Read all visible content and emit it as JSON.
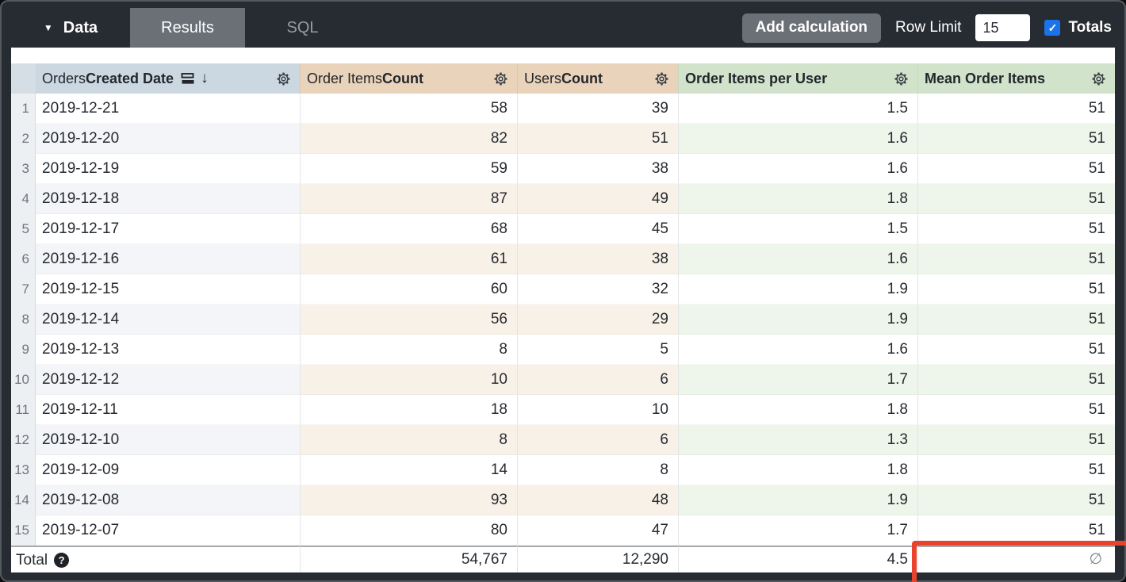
{
  "topbar": {
    "data_label": "Data",
    "tabs": [
      {
        "label": "Results",
        "active": true
      },
      {
        "label": "SQL",
        "active": false
      }
    ],
    "add_calculation_label": "Add calculation",
    "row_limit_label": "Row Limit",
    "row_limit_value": "15",
    "totals_label": "Totals",
    "totals_checked": true
  },
  "icons": {
    "caret-down": "▼",
    "sort-descending-arrow": "↓",
    "checkmark": "✓",
    "help": "?"
  },
  "table": {
    "columns": [
      {
        "view": "Orders",
        "field": "Created Date",
        "type": "dimension",
        "sorted": "descending"
      },
      {
        "view": "Order Items",
        "field": "Count",
        "type": "measure"
      },
      {
        "view": "Users",
        "field": "Count",
        "type": "measure"
      },
      {
        "view": "",
        "field": "Order Items per User",
        "type": "table_calculation"
      },
      {
        "view": "",
        "field": "Mean Order Items",
        "type": "table_calculation"
      }
    ],
    "rows": [
      {
        "num": "1",
        "date": "2019-12-21",
        "order_items_count": "58",
        "users_count": "39",
        "order_items_per_user": "1.5",
        "mean_order_items": "51"
      },
      {
        "num": "2",
        "date": "2019-12-20",
        "order_items_count": "82",
        "users_count": "51",
        "order_items_per_user": "1.6",
        "mean_order_items": "51"
      },
      {
        "num": "3",
        "date": "2019-12-19",
        "order_items_count": "59",
        "users_count": "38",
        "order_items_per_user": "1.6",
        "mean_order_items": "51"
      },
      {
        "num": "4",
        "date": "2019-12-18",
        "order_items_count": "87",
        "users_count": "49",
        "order_items_per_user": "1.8",
        "mean_order_items": "51"
      },
      {
        "num": "5",
        "date": "2019-12-17",
        "order_items_count": "68",
        "users_count": "45",
        "order_items_per_user": "1.5",
        "mean_order_items": "51"
      },
      {
        "num": "6",
        "date": "2019-12-16",
        "order_items_count": "61",
        "users_count": "38",
        "order_items_per_user": "1.6",
        "mean_order_items": "51"
      },
      {
        "num": "7",
        "date": "2019-12-15",
        "order_items_count": "60",
        "users_count": "32",
        "order_items_per_user": "1.9",
        "mean_order_items": "51"
      },
      {
        "num": "8",
        "date": "2019-12-14",
        "order_items_count": "56",
        "users_count": "29",
        "order_items_per_user": "1.9",
        "mean_order_items": "51"
      },
      {
        "num": "9",
        "date": "2019-12-13",
        "order_items_count": "8",
        "users_count": "5",
        "order_items_per_user": "1.6",
        "mean_order_items": "51"
      },
      {
        "num": "10",
        "date": "2019-12-12",
        "order_items_count": "10",
        "users_count": "6",
        "order_items_per_user": "1.7",
        "mean_order_items": "51"
      },
      {
        "num": "11",
        "date": "2019-12-11",
        "order_items_count": "18",
        "users_count": "10",
        "order_items_per_user": "1.8",
        "mean_order_items": "51"
      },
      {
        "num": "12",
        "date": "2019-12-10",
        "order_items_count": "8",
        "users_count": "6",
        "order_items_per_user": "1.3",
        "mean_order_items": "51"
      },
      {
        "num": "13",
        "date": "2019-12-09",
        "order_items_count": "14",
        "users_count": "8",
        "order_items_per_user": "1.8",
        "mean_order_items": "51"
      },
      {
        "num": "14",
        "date": "2019-12-08",
        "order_items_count": "93",
        "users_count": "48",
        "order_items_per_user": "1.9",
        "mean_order_items": "51"
      },
      {
        "num": "15",
        "date": "2019-12-07",
        "order_items_count": "80",
        "users_count": "47",
        "order_items_per_user": "1.7",
        "mean_order_items": "51"
      }
    ],
    "total": {
      "label": "Total",
      "order_items_count": "54,767",
      "users_count": "12,290",
      "order_items_per_user": "4.5",
      "mean_order_items": "∅"
    }
  },
  "colors": {
    "topbar_background": "#272c33",
    "active_tab_background": "#6b7077",
    "dimension_header": "#ccd8e1",
    "measure_header": "#e9d3ba",
    "calculation_header": "#d2e3cb",
    "checkbox_blue": "#1a73e8",
    "annotation_red": "#e8432d"
  },
  "annotation": {
    "shape": "red-highlight-box",
    "target": "total-mean-order-items-cell"
  }
}
